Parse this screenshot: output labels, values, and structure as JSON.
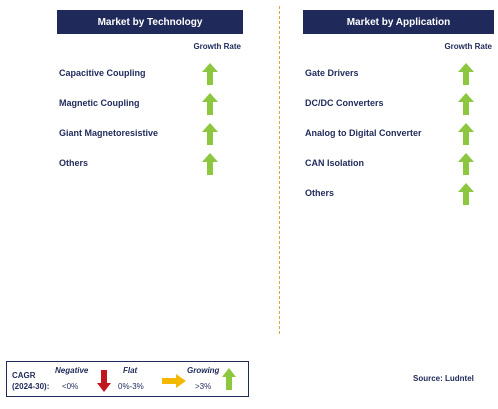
{
  "technology": {
    "title": "Market by  Technology",
    "growth_label": "Growth Rate",
    "items": [
      {
        "label": "Capacitive Coupling",
        "trend": "growing"
      },
      {
        "label": "Magnetic Coupling",
        "trend": "growing"
      },
      {
        "label": "Giant Magnetoresistive",
        "trend": "growing"
      },
      {
        "label": "Others",
        "trend": "growing"
      }
    ]
  },
  "application": {
    "title": "Market by  Application",
    "growth_label": "Growth Rate",
    "items": [
      {
        "label": "Gate Drivers",
        "trend": "growing"
      },
      {
        "label": "DC/DC Converters",
        "trend": "growing"
      },
      {
        "label": "Analog to Digital Converter",
        "trend": "growing"
      },
      {
        "label": "CAN Isolation",
        "trend": "growing"
      },
      {
        "label": "Others",
        "trend": "growing"
      }
    ]
  },
  "legend": {
    "cagr_line1": "CAGR",
    "cagr_line2": "(2024-30):",
    "negative_title": "Negative",
    "negative_range": "<0%",
    "flat_title": "Flat",
    "flat_range": "0%-3%",
    "growing_title": "Growing",
    "growing_range": ">3%"
  },
  "source": "Source: Ludntel",
  "colors": {
    "header_bg": "#1f2a5a",
    "growing": "#8dc63f",
    "negative": "#c0161d",
    "flat": "#f5b800",
    "divider": "#e6a23a"
  }
}
